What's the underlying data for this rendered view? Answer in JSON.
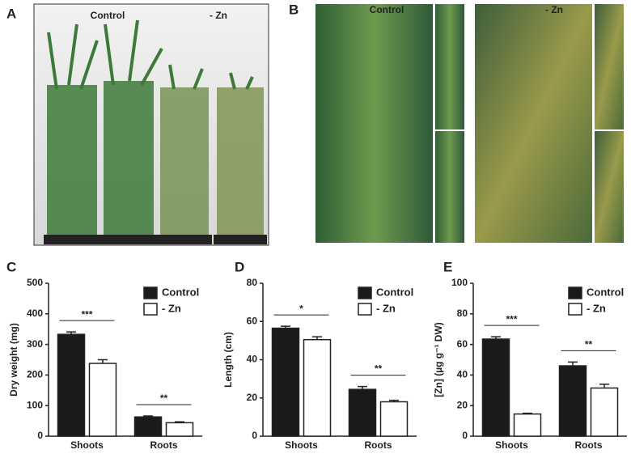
{
  "figure": {
    "panel_labels": [
      "A",
      "B",
      "C",
      "D",
      "E"
    ],
    "photo_a_labels": [
      "Control",
      "- Zn"
    ],
    "photo_b_labels": [
      "Control",
      "- Zn"
    ]
  },
  "chart_data": [
    {
      "type": "bar",
      "ylabel": "Dry weight (mg)",
      "categories": [
        "Shoots",
        "Roots"
      ],
      "series": [
        {
          "name": "Control",
          "color": "#1a1a1a",
          "values": [
            333,
            63
          ],
          "errors": [
            8,
            3
          ]
        },
        {
          "name": "- Zn",
          "color": "#ffffff",
          "values": [
            238,
            44
          ],
          "errors": [
            12,
            3
          ]
        }
      ],
      "annotations": [
        "***",
        "**"
      ],
      "ylim": [
        0,
        500
      ],
      "yticks": [
        0,
        100,
        200,
        300,
        400,
        500
      ],
      "legend": "top-right"
    },
    {
      "type": "bar",
      "ylabel": "Length (cm)",
      "categories": [
        "Shoots",
        "Roots"
      ],
      "series": [
        {
          "name": "Control",
          "color": "#1a1a1a",
          "values": [
            56.5,
            24.5
          ],
          "errors": [
            1,
            1.5
          ]
        },
        {
          "name": "- Zn",
          "color": "#ffffff",
          "values": [
            50.5,
            18
          ],
          "errors": [
            1.5,
            0.8
          ]
        }
      ],
      "annotations": [
        "*",
        "**"
      ],
      "ylim": [
        0,
        80
      ],
      "yticks": [
        0,
        20,
        40,
        60,
        80
      ],
      "legend": "top-right"
    },
    {
      "type": "bar",
      "ylabel": "[Zn] (µg g⁻¹ DW)",
      "categories": [
        "Shoots",
        "Roots"
      ],
      "series": [
        {
          "name": "Control",
          "color": "#1a1a1a",
          "values": [
            63.5,
            46
          ],
          "errors": [
            1.5,
            2.5
          ]
        },
        {
          "name": "- Zn",
          "color": "#ffffff",
          "values": [
            14.5,
            31.5
          ],
          "errors": [
            0.5,
            2.5
          ]
        }
      ],
      "annotations": [
        "***",
        "**"
      ],
      "ylim": [
        0,
        100
      ],
      "yticks": [
        0,
        20,
        40,
        60,
        80,
        100
      ],
      "legend": "top-right"
    }
  ]
}
